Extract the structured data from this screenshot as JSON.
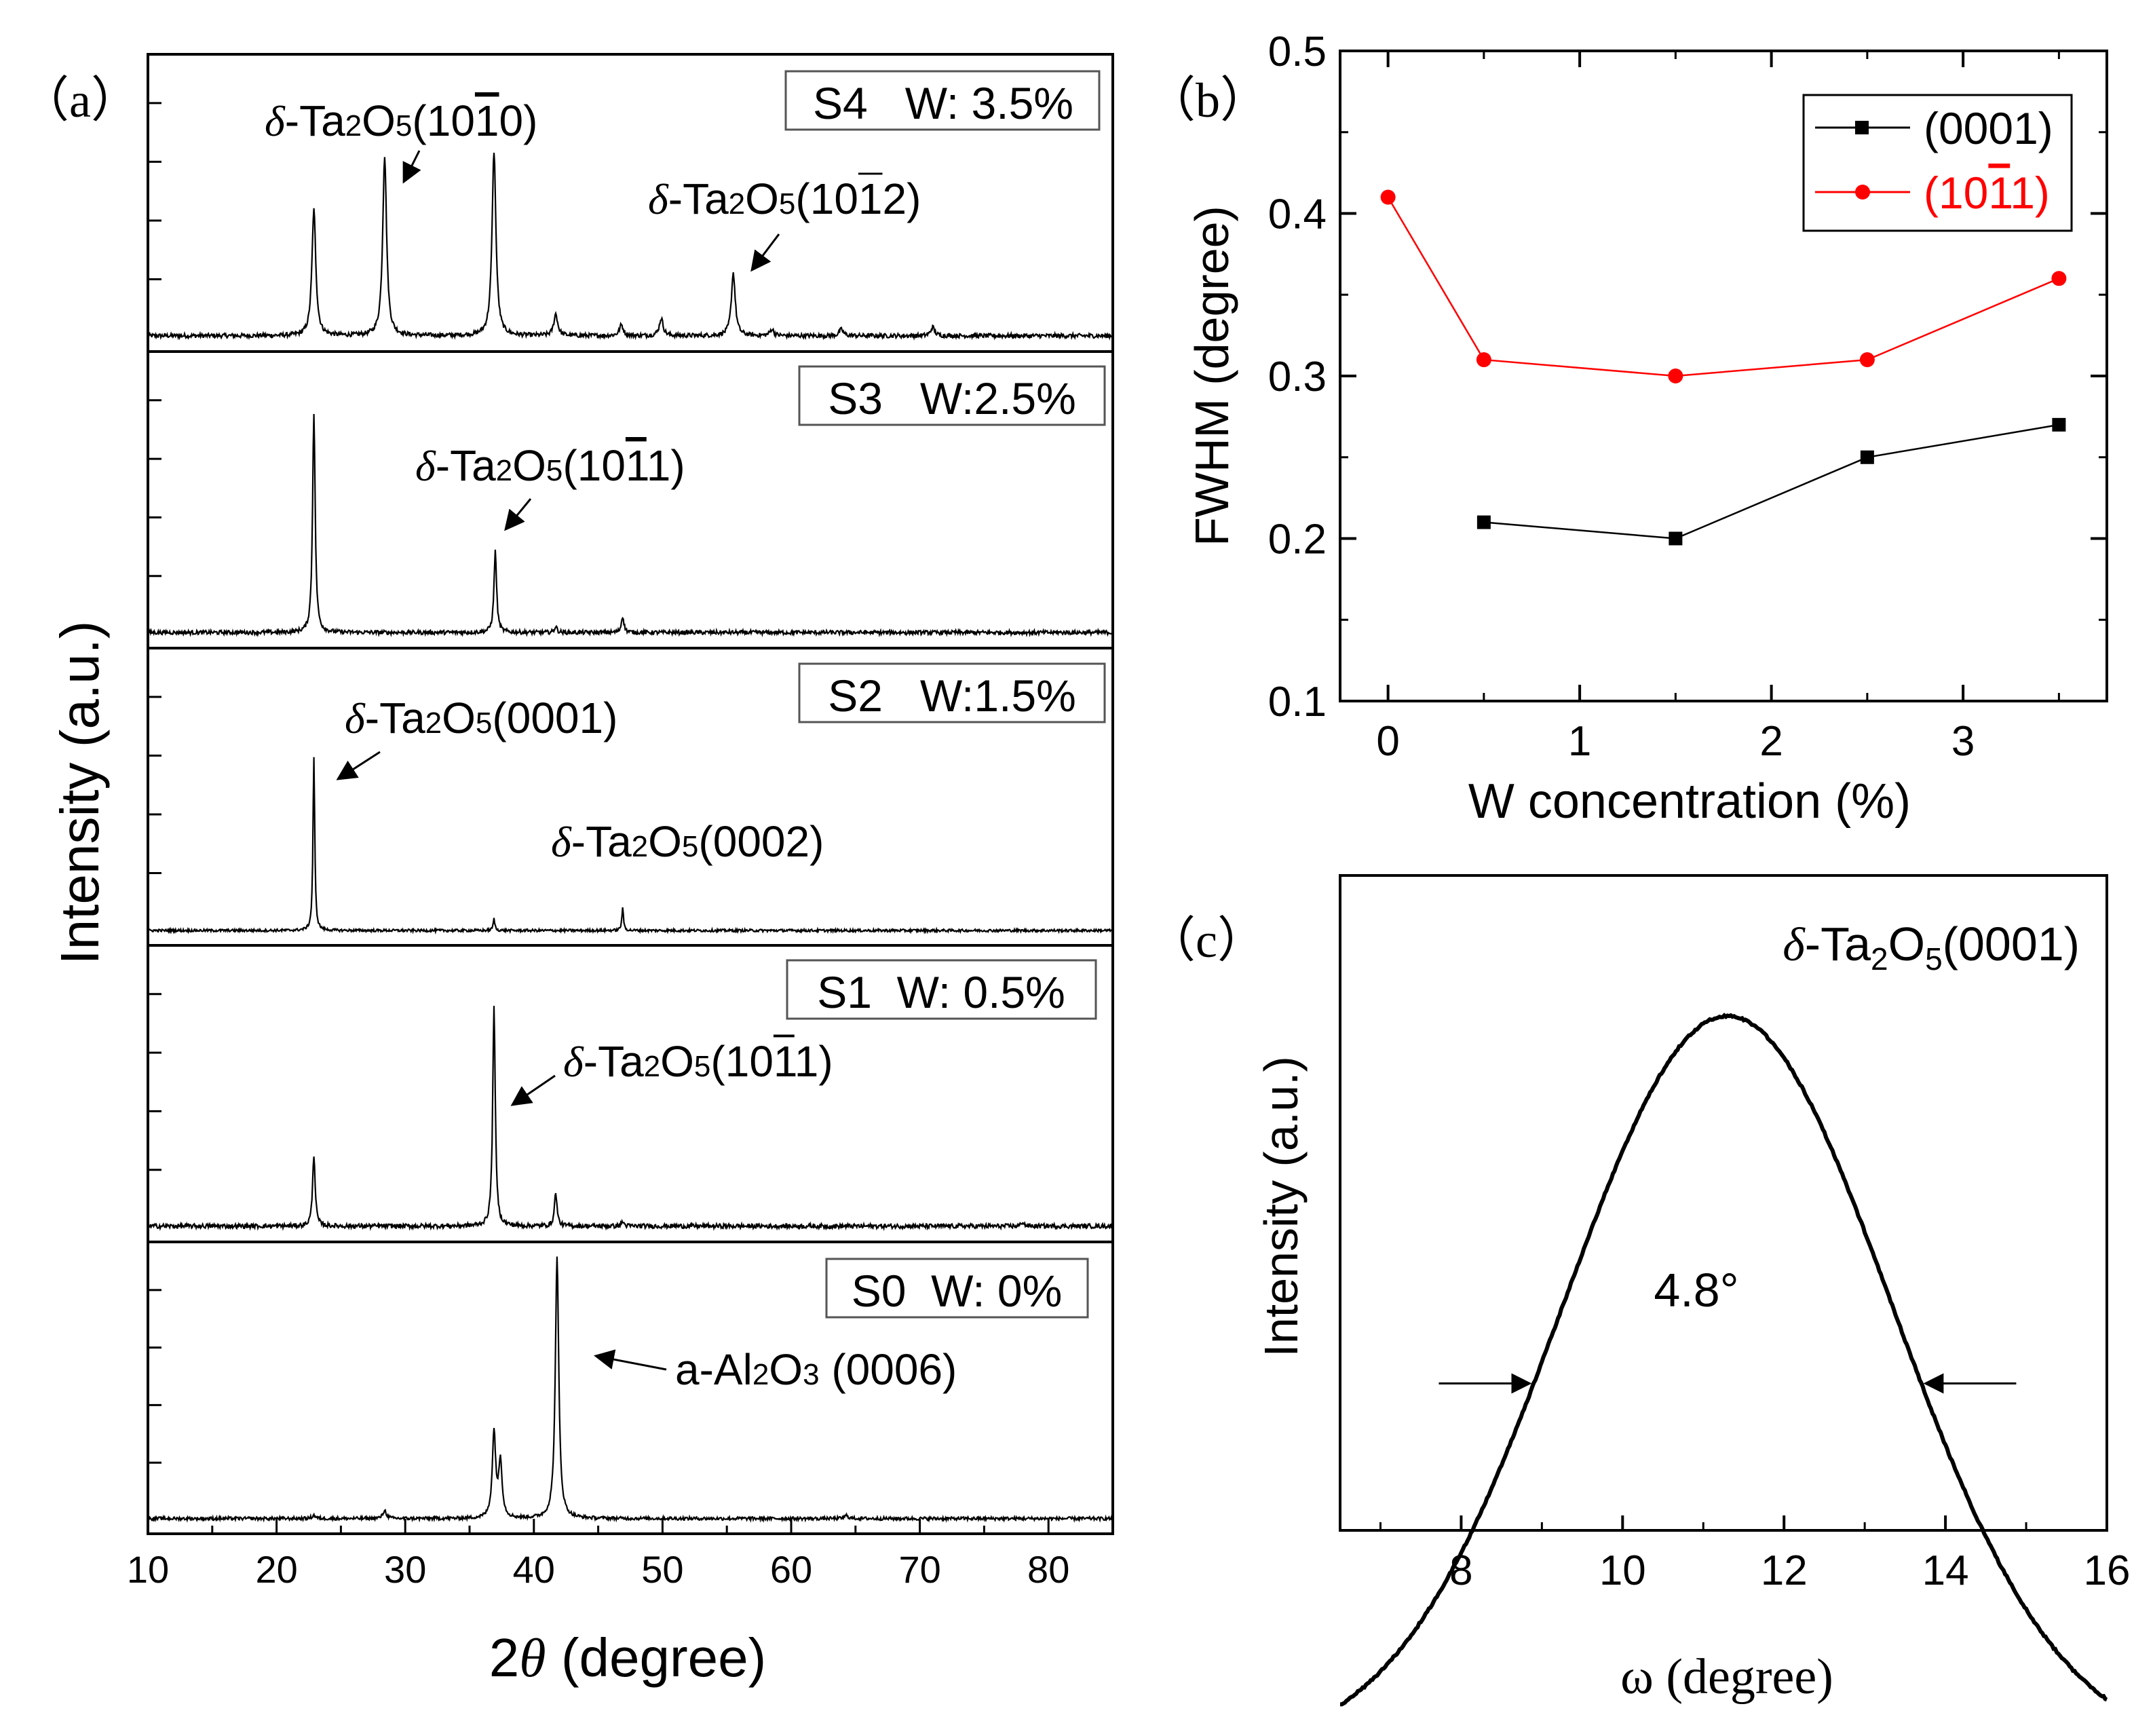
{
  "figure": {
    "panel_a_label": "（a）",
    "panel_b_label": "（b）",
    "panel_c_label": "（c）"
  },
  "chart_data": [
    {
      "id": "a",
      "type": "line",
      "title": "",
      "xlabel_prefix": "2",
      "xlabel_symbol": "θ",
      "xlabel_suffix": " (degree)",
      "ylabel": "Intensity (a.u.)",
      "xlim": [
        10,
        85
      ],
      "xticks": [
        10,
        20,
        30,
        40,
        50,
        60,
        70,
        80
      ],
      "xtick_labels": [
        "10",
        "20",
        "30",
        "40",
        "50",
        "60",
        "70",
        "80"
      ],
      "panels": [
        {
          "name": "S4",
          "legend_label": "S4   W: 3.5%",
          "peaks": [
            [
              22.9,
              0.58
            ],
            [
              28.4,
              0.83
            ],
            [
              36.9,
              0.85
            ],
            [
              41.7,
              0.1
            ],
            [
              46.8,
              0.05
            ],
            [
              49.9,
              0.08
            ],
            [
              55.5,
              0.29
            ],
            [
              58.5,
              0.03
            ],
            [
              63.9,
              0.03
            ],
            [
              71.0,
              0.04
            ]
          ],
          "annotations": [
            {
              "phase": "δ",
              "formula": "-Ta",
              "sub1": "2",
              "mid": "O",
              "sub2": "5",
              "prefix": "(10",
              "barred": "1",
              "suffix": "0)"
            },
            {
              "phase": "δ",
              "formula": "-Ta",
              "sub1": "2",
              "mid": "O",
              "sub2": "5",
              "prefix": "(10",
              "barred": "1",
              "suffix": "2)"
            }
          ]
        },
        {
          "name": "S3",
          "legend_label": "S3   W:2.5%",
          "peaks": [
            [
              22.9,
              1.08
            ],
            [
              37.0,
              0.4
            ],
            [
              41.7,
              0.03
            ],
            [
              46.9,
              0.08
            ]
          ],
          "annotations": [
            {
              "phase": "δ",
              "formula": "-Ta",
              "sub1": "2",
              "mid": "O",
              "sub2": "5",
              "prefix": "(10",
              "barred": "1",
              "suffix": "1)"
            }
          ]
        },
        {
          "name": "S2",
          "legend_label": "S2   W:1.5%",
          "peaks": [
            [
              22.9,
              1.35
            ],
            [
              36.9,
              0.09
            ],
            [
              46.9,
              0.17
            ]
          ],
          "annotations": [
            {
              "phase": "δ",
              "formula": "-Ta",
              "sub1": "2",
              "mid": "O",
              "sub2": "5",
              "prefix": "(0001)",
              "barred": "",
              "suffix": ""
            },
            {
              "phase": "δ",
              "formula": "-Ta",
              "sub1": "2",
              "mid": "O",
              "sub2": "5",
              "prefix": "(0002)",
              "barred": "",
              "suffix": ""
            }
          ]
        },
        {
          "name": "S1",
          "legend_label": "S1  W: 0.5%",
          "peaks": [
            [
              22.9,
              0.32
            ],
            [
              36.9,
              0.98
            ],
            [
              41.7,
              0.15
            ],
            [
              46.9,
              0.02
            ],
            [
              78.0,
              0.02
            ]
          ],
          "annotations": [
            {
              "phase": "δ",
              "formula": "-Ta",
              "sub1": "2",
              "mid": "O",
              "sub2": "5",
              "prefix": "(10",
              "barred": "1",
              "suffix": "1)"
            }
          ]
        },
        {
          "name": "S0",
          "legend_label": "S0  W: 0%",
          "peaks": [
            [
              22.9,
              0.02
            ],
            [
              28.4,
              0.05
            ],
            [
              36.9,
              0.52
            ],
            [
              37.4,
              0.34
            ],
            [
              41.8,
              1.6
            ],
            [
              64.3,
              0.02
            ]
          ],
          "annotations": [
            {
              "phase": "",
              "formula": "a-Al",
              "sub1": "2",
              "mid": "O",
              "sub2": "3",
              "prefix": " (0006)",
              "barred": "",
              "suffix": ""
            }
          ]
        }
      ]
    },
    {
      "id": "b",
      "type": "line",
      "title": "",
      "xlabel": "W concentration (%)",
      "ylabel": "FWHM (degree)",
      "xlim": [
        -0.25,
        3.75
      ],
      "ylim": [
        0.1,
        0.5
      ],
      "xticks": [
        0,
        1,
        2,
        3
      ],
      "xtick_labels": [
        "0",
        "1",
        "2",
        "3"
      ],
      "yticks": [
        0.1,
        0.2,
        0.3,
        0.4,
        0.5
      ],
      "ytick_labels": [
        "0.1",
        "0.2",
        "0.3",
        "0.4",
        "0.5"
      ],
      "legend_position": "top-right",
      "series": [
        {
          "name": "(0001)",
          "legend_prefix": "(0001)",
          "legend_barred": "",
          "legend_suffix": "",
          "color": "#000000",
          "marker": "square",
          "x": [
            0.5,
            1.5,
            2.5,
            3.5
          ],
          "y": [
            0.21,
            0.2,
            0.25,
            0.27
          ]
        },
        {
          "name": "(10-11)",
          "legend_prefix": "(10",
          "legend_barred": "1",
          "legend_suffix": "1)",
          "color": "#ff0000",
          "marker": "circle",
          "x": [
            0,
            0.5,
            1.5,
            2.5,
            3.5
          ],
          "y": [
            0.41,
            0.31,
            0.3,
            0.31,
            0.36
          ]
        }
      ]
    },
    {
      "id": "c",
      "type": "line",
      "title_phase": "δ",
      "title_formula": "-Ta",
      "title_sub1": "2",
      "title_mid": "O",
      "title_sub2": "5",
      "title_suffix": "(0001)",
      "xlabel": "ω (degree)",
      "ylabel": "Intensity (a.u.)",
      "xlim": [
        6.5,
        16
      ],
      "xticks": [
        8,
        10,
        12,
        14,
        16
      ],
      "xtick_labels": [
        "8",
        "10",
        "12",
        "14",
        "16"
      ],
      "center": 11.3,
      "fwhm_value": 4.8,
      "fwhm_label": "4.8°",
      "color": "#000000"
    }
  ]
}
